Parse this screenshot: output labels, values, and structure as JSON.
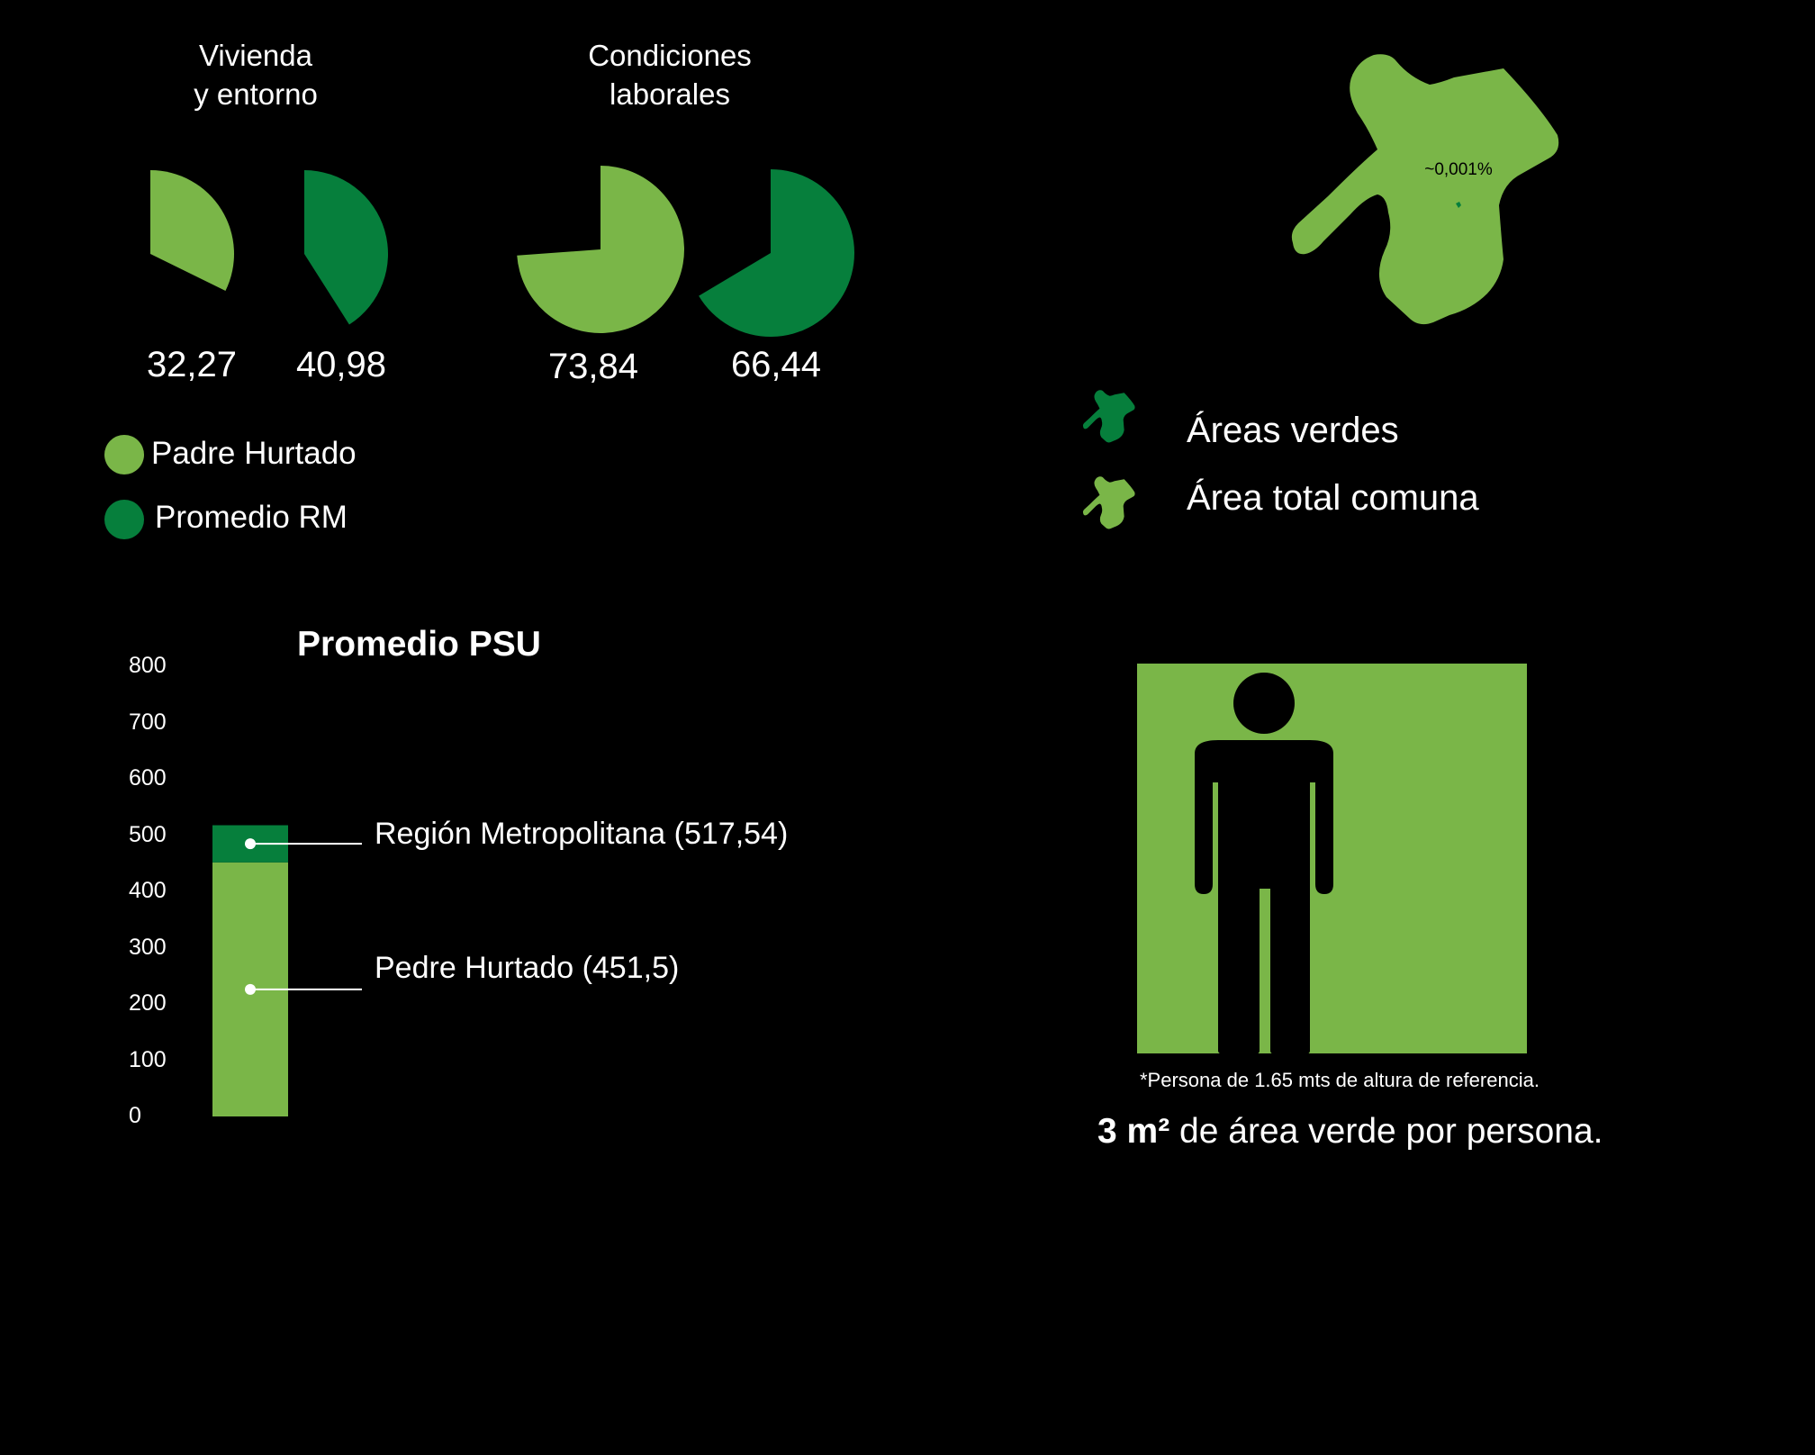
{
  "pie_charts": {
    "groups": [
      {
        "title_line1": "Vivienda",
        "title_line2": "y entorno",
        "padre_hurtado": "32,27",
        "promedio_rm": "40,98"
      },
      {
        "title_line1": "Condiciones",
        "title_line2": "laborales",
        "padre_hurtado": "73,84",
        "promedio_rm": "66,44"
      }
    ],
    "legend": [
      {
        "label": "Padre Hurtado",
        "color": "#7ab648"
      },
      {
        "label": "Promedio RM",
        "color": "#067f3c"
      }
    ]
  },
  "chart_data": [
    {
      "type": "pie",
      "title": "Vivienda y entorno",
      "series": [
        {
          "name": "Padre Hurtado",
          "value": 32.27,
          "label": "32,27",
          "color": "#7ab648"
        },
        {
          "name": "Promedio RM",
          "value": 40.98,
          "label": "40,98",
          "color": "#067f3c"
        }
      ]
    },
    {
      "type": "pie",
      "title": "Condiciones laborales",
      "series": [
        {
          "name": "Padre Hurtado",
          "value": 73.84,
          "label": "73,84",
          "color": "#7ab648"
        },
        {
          "name": "Promedio RM",
          "value": 66.44,
          "label": "66,44",
          "color": "#067f3c"
        }
      ]
    },
    {
      "type": "bar",
      "title": "Promedio PSU",
      "categories": [
        "Región Metropolitana",
        "Pedre Hurtado"
      ],
      "values": [
        517.54,
        451.5
      ],
      "labels": [
        "Región Metropolitana (517,54)",
        "Pedre Hurtado (451,5)"
      ],
      "colors": [
        "#067f3c",
        "#7ab648"
      ],
      "yticks": [
        "800",
        "700",
        "600",
        "500",
        "400",
        "300",
        "200",
        "100",
        "0"
      ],
      "ylim": [
        0,
        800
      ]
    }
  ],
  "map": {
    "percent_label": "~0,001%",
    "legend": [
      {
        "label": "Áreas verdes",
        "color": "#067f3c",
        "icon": "comuna-shape-icon"
      },
      {
        "label": "Área total comuna",
        "color": "#7ab648",
        "icon": "comuna-shape-icon"
      }
    ],
    "map_color": "#7ab648"
  },
  "person_box": {
    "box_color": "#7ab648",
    "icon": "person-icon",
    "footnote": "*Persona de 1.65 mts de altura de referencia.",
    "summary_bold": "3 m²",
    "summary_rest": " de área verde por persona."
  }
}
